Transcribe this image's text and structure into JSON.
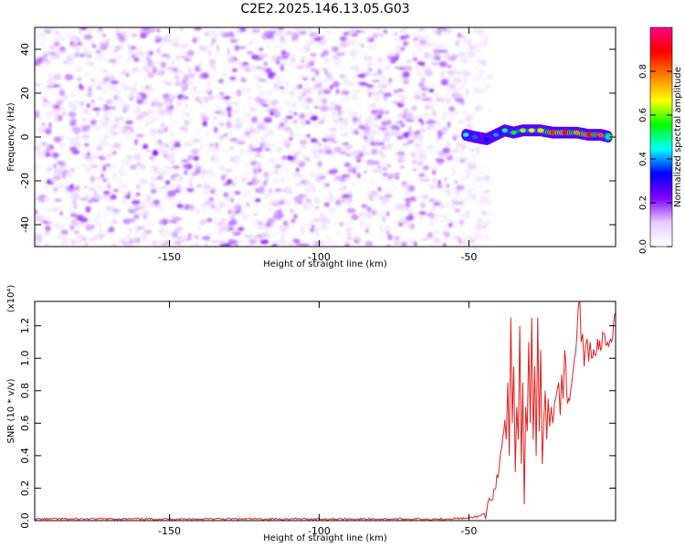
{
  "title": "C2E2.2025.146.13.05.G03",
  "chart_data": [
    {
      "type": "heatmap",
      "name": "spectrogram",
      "xlabel": "Height of straight line (km)",
      "ylabel": "Frequency (Hz)",
      "xlim": [
        -195,
        -1
      ],
      "ylim": [
        -50,
        50
      ],
      "xticks": [
        -150,
        -100,
        -50
      ],
      "yticks": [
        -40,
        -20,
        0,
        20,
        40
      ],
      "colorbar": {
        "label": "Normalized spectral amplitude",
        "range": [
          0,
          1
        ],
        "ticks": [
          0.0,
          0.2,
          0.4,
          0.6,
          0.8
        ],
        "tick_labels": [
          "0.0",
          "0.2",
          "0.4",
          "0.6",
          "0.8"
        ],
        "colormap": [
          "#ffffff",
          "#e6ccff",
          "#8000ff",
          "#0000ff",
          "#00ffff",
          "#00ff00",
          "#ffff00",
          "#ff8000",
          "#ff0000",
          "#ff0080"
        ]
      },
      "noise_region": {
        "x_range": [
          -195,
          -43
        ],
        "amplitude": [
          0.0,
          0.2
        ]
      },
      "signal_track": [
        {
          "x": -51,
          "y": 1,
          "amplitude": 0.45
        },
        {
          "x": -48,
          "y": 0,
          "amplitude": 0.38
        },
        {
          "x": -44,
          "y": -1,
          "amplitude": 0.32
        },
        {
          "x": -41,
          "y": 1,
          "amplitude": 0.4
        },
        {
          "x": -38,
          "y": 3,
          "amplitude": 0.5
        },
        {
          "x": -35,
          "y": 2,
          "amplitude": 0.55
        },
        {
          "x": -32,
          "y": 3,
          "amplitude": 0.62
        },
        {
          "x": -29,
          "y": 3,
          "amplitude": 0.66
        },
        {
          "x": -26,
          "y": 3,
          "amplitude": 0.7
        },
        {
          "x": -22,
          "y": 2,
          "amplitude": 0.85
        },
        {
          "x": -18,
          "y": 2,
          "amplitude": 0.9
        },
        {
          "x": -14,
          "y": 2,
          "amplitude": 0.78
        },
        {
          "x": -10,
          "y": 1,
          "amplitude": 0.88
        },
        {
          "x": -6,
          "y": 1,
          "amplitude": 0.82
        },
        {
          "x": -3,
          "y": 0,
          "amplitude": 0.55
        }
      ]
    },
    {
      "type": "line",
      "name": "snr",
      "xlabel": "Height of straight line (km)",
      "ylabel": "SNR (10 * v/v)",
      "y_multiplier": "(x10⁴)",
      "xlim": [
        -195,
        -1
      ],
      "ylim": [
        0,
        1.35
      ],
      "xticks": [
        -150,
        -100,
        -50
      ],
      "yticks": [
        0.0,
        0.2,
        0.4,
        0.6,
        0.8,
        1.0,
        1.2
      ],
      "ytick_labels": [
        "0.0",
        "0.2",
        "0.4",
        "0.6",
        "0.8",
        "1.0",
        "1.2"
      ],
      "color": "#e02020",
      "series": [
        {
          "x": [
            -195,
            -180,
            -160,
            -140,
            -120,
            -100,
            -80,
            -60,
            -50,
            -46,
            -44,
            -42,
            -41,
            -40,
            -39,
            -38,
            -37.5,
            -37,
            -36.5,
            -36,
            -35.5,
            -35,
            -34.5,
            -34,
            -33.5,
            -33,
            -32.5,
            -32,
            -31.5,
            -31,
            -30.5,
            -30,
            -29.5,
            -29,
            -28.5,
            -28,
            -27.5,
            -27,
            -26.5,
            -26,
            -25.5,
            -25,
            -24.5,
            -24,
            -23.5,
            -23,
            -22.5,
            -22,
            -21,
            -20,
            -19.5,
            -19,
            -18.5,
            -18,
            -17,
            -16,
            -15,
            -14,
            -13.5,
            -13,
            -12.5,
            -12,
            -11.5,
            -11,
            -10.5,
            -10,
            -9.5,
            -9,
            -8,
            -7,
            -6,
            -5,
            -4,
            -3,
            -2,
            -1
          ],
          "y": [
            0.01,
            0.01,
            0.01,
            0.01,
            0.01,
            0.01,
            0.01,
            0.01,
            0.015,
            0.03,
            0.06,
            0.13,
            0.2,
            0.3,
            0.45,
            0.62,
            0.5,
            0.85,
            0.4,
            1.25,
            0.6,
            0.95,
            0.3,
            0.7,
            0.5,
            1.2,
            0.35,
            0.85,
            0.1,
            0.7,
            0.55,
            1.1,
            0.6,
            1.25,
            0.5,
            0.95,
            0.4,
            1.25,
            0.55,
            1.05,
            0.35,
            0.6,
            0.8,
            0.5,
            0.75,
            0.58,
            0.7,
            0.6,
            0.75,
            0.85,
            0.65,
            0.9,
            0.75,
            1.05,
            0.72,
            0.8,
            0.95,
            1.12,
            1.3,
            1.38,
            1.1,
            1.15,
            0.95,
            1.08,
            1.12,
            0.98,
            1.1,
            1.0,
            1.02,
            1.12,
            1.05,
            1.15,
            1.08,
            1.1,
            1.12,
            1.28
          ]
        }
      ]
    }
  ]
}
